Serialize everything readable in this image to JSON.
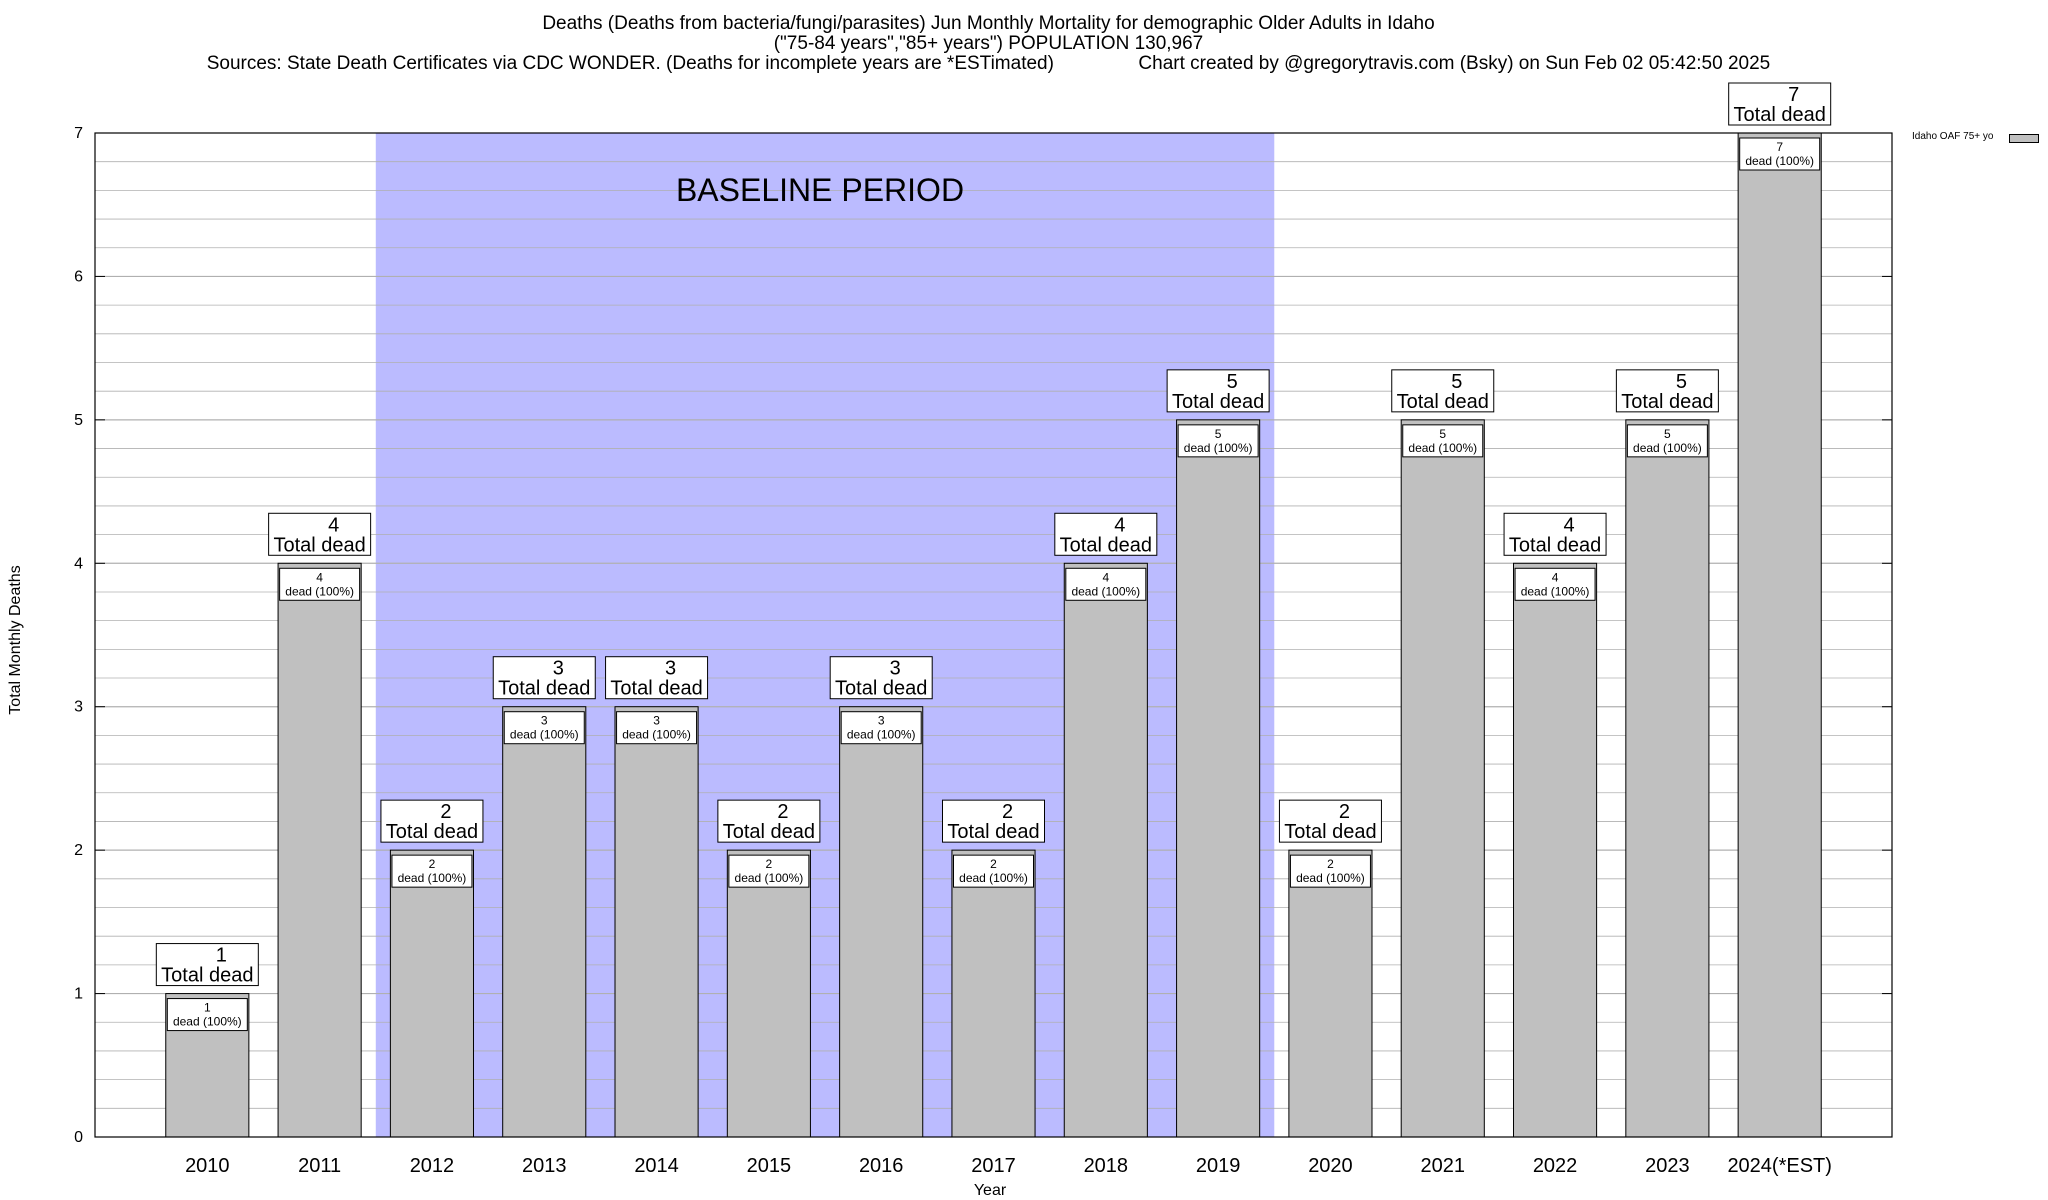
{
  "title": {
    "line1": "Deaths (Deaths from bacteria/fungi/parasites) Jun Monthly Mortality for demographic Older Adults in Idaho",
    "line2": "(\"75-84 years\",\"85+ years\") POPULATION 130,967",
    "line3_left": "Sources: State Death Certificates via CDC WONDER. (Deaths for incomplete years are *ESTimated)",
    "line3_right": "Chart created by @gregorytravis.com (Bsky) on Sun Feb 02 05:42:50 2025"
  },
  "colors": {
    "bar": "#c0c0c0",
    "baseline_band": "#bbbbff",
    "grid": "#b0b0b0"
  },
  "chart_data": {
    "type": "bar",
    "title": "Deaths (Deaths from bacteria/fungi/parasites) Jun Monthly Mortality for demographic Older Adults in Idaho",
    "xlabel": "Year",
    "ylabel": "Total Monthly Deaths",
    "ylim": [
      0,
      7
    ],
    "yticks": [
      0,
      1,
      2,
      3,
      4,
      5,
      6,
      7
    ],
    "grid": "horizontal",
    "legend_placement": "top-right",
    "categories": [
      "2010",
      "2011",
      "2012",
      "2013",
      "2014",
      "2015",
      "2016",
      "2017",
      "2018",
      "2019",
      "2020",
      "2021",
      "2022",
      "2023",
      "2024(*EST)"
    ],
    "series": [
      {
        "name": "Idaho OAF 75+ yo",
        "values": [
          1,
          4,
          2,
          3,
          3,
          2,
          3,
          2,
          4,
          5,
          2,
          5,
          4,
          5,
          7
        ]
      }
    ],
    "top_label_suffix": "Total dead",
    "inner_label_suffix": "dead (100%)",
    "baseline_period": {
      "label": "BASELINE PERIOD",
      "from": "2012",
      "to": "2019"
    }
  }
}
